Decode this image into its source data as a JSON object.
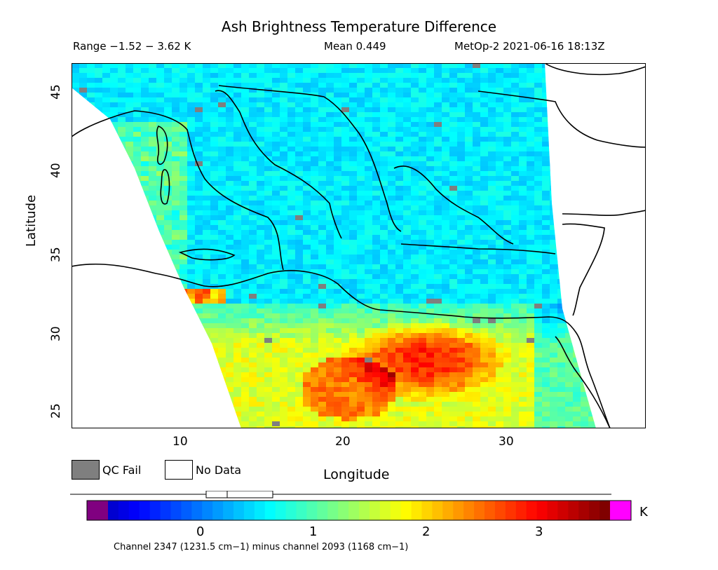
{
  "title": "Ash Brightness Temperature Difference",
  "header": {
    "range": "Range −1.52 − 3.62 K",
    "mean": "Mean 0.449",
    "stamp": "MetOp-2 2021-06-16 18:13Z"
  },
  "axes": {
    "ylabel": "Latitude",
    "xlabel": "Longitude",
    "yticks": [
      "45",
      "40",
      "35",
      "30",
      "25"
    ],
    "xticks": [
      "10",
      "20",
      "30"
    ],
    "lon_range": [
      3.5,
      38.5
    ],
    "lat_range": [
      24,
      47
    ]
  },
  "legend": {
    "qc_fail": "QC Fail",
    "no_data": "No Data"
  },
  "colorbar": {
    "unit": "K",
    "ticks": [
      "0",
      "1",
      "2",
      "3"
    ],
    "min": -1.52,
    "max": 3.62,
    "caption": "Channel 2347 (1231.5 cm−1) minus channel 2093 (1168 cm−1)"
  },
  "colors": {
    "qc_fail": "#7f7f7f",
    "below_range": "#800080",
    "above_range": "#ff00ff"
  }
}
